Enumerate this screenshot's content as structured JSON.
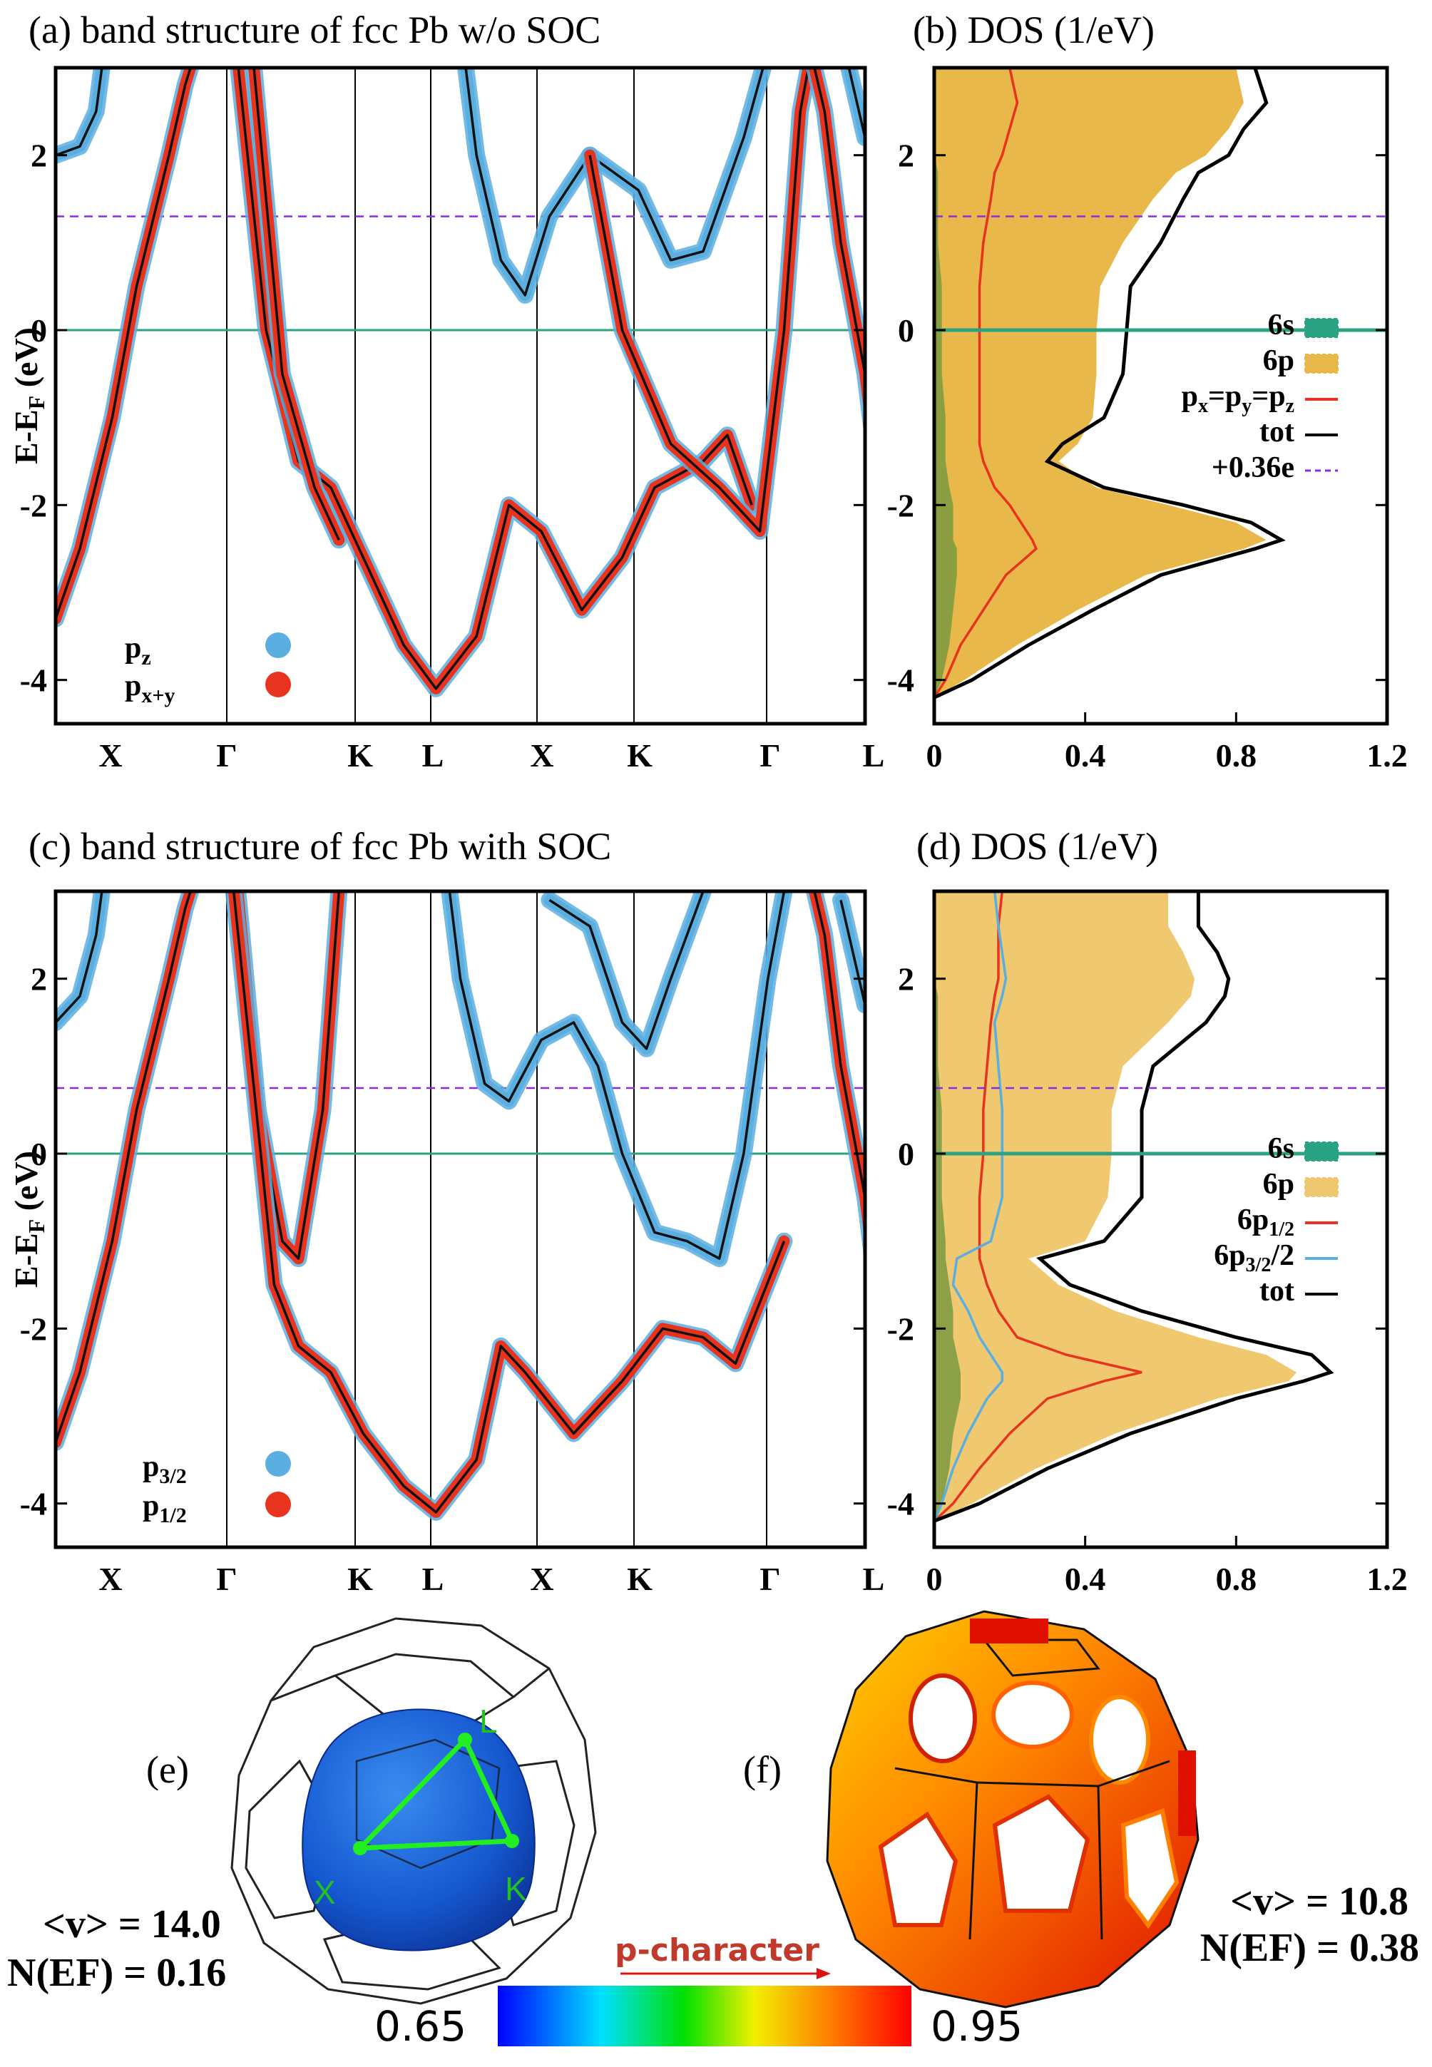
{
  "chart_data": [
    {
      "id": "a",
      "type": "line",
      "title": "(a) band structure of fcc Pb w/o SOC",
      "ylabel": "E-EF (eV)",
      "ylim": [
        -4.5,
        3.0
      ],
      "yticks": [
        "2",
        "0",
        "-2",
        "-4"
      ],
      "kpoints": [
        "X",
        "Γ",
        "K",
        "L",
        "X",
        "K",
        "Γ",
        "L"
      ],
      "hlines": {
        "fermi": 0.0,
        "shifted": 1.3
      },
      "legend": [
        {
          "label": "pz",
          "color": "#5aaee0"
        },
        {
          "label": "px+y",
          "color": "#e8331e"
        }
      ]
    },
    {
      "id": "b",
      "type": "area",
      "title": "(b) DOS (1/eV)",
      "xlim": [
        0,
        1.2
      ],
      "ylim": [
        -4.5,
        3.0
      ],
      "xticks": [
        "0",
        "0.4",
        "0.8",
        "1.2"
      ],
      "yticks": [
        "2",
        "0",
        "-2",
        "-4"
      ],
      "series": [
        {
          "name": "6s",
          "color": "#2aa383"
        },
        {
          "name": "6p",
          "color": "#e8b84a"
        },
        {
          "name": "px=py=pz",
          "color": "#e8331e"
        },
        {
          "name": "tot",
          "color": "#000000"
        },
        {
          "name": "+0.36e",
          "color": "#8a2be2"
        }
      ],
      "energies": [
        -4.2,
        -4.0,
        -3.6,
        -3.2,
        -2.8,
        -2.5,
        -2.4,
        -2.2,
        -2.0,
        -1.8,
        -1.5,
        -1.3,
        -1.0,
        -0.5,
        0.0,
        0.5,
        1.0,
        1.5,
        1.8,
        2.0,
        2.3,
        2.6,
        3.0
      ],
      "tot": [
        0.0,
        0.1,
        0.25,
        0.42,
        0.6,
        0.85,
        0.92,
        0.84,
        0.66,
        0.45,
        0.3,
        0.34,
        0.45,
        0.5,
        0.51,
        0.52,
        0.6,
        0.66,
        0.7,
        0.78,
        0.82,
        0.88,
        0.85
      ],
      "p6": [
        0.0,
        0.08,
        0.22,
        0.38,
        0.56,
        0.82,
        0.88,
        0.8,
        0.62,
        0.43,
        0.33,
        0.38,
        0.42,
        0.43,
        0.43,
        0.44,
        0.5,
        0.58,
        0.64,
        0.72,
        0.78,
        0.82,
        0.8
      ],
      "s6": [
        0.0,
        0.02,
        0.04,
        0.05,
        0.06,
        0.06,
        0.05,
        0.05,
        0.05,
        0.04,
        0.03,
        0.03,
        0.03,
        0.02,
        0.02,
        0.02,
        0.01,
        0.01,
        0.01,
        0.0,
        0.0,
        0.0,
        0.0
      ],
      "pxyz": [
        0.0,
        0.03,
        0.07,
        0.13,
        0.19,
        0.27,
        0.26,
        0.23,
        0.2,
        0.16,
        0.13,
        0.12,
        0.12,
        0.12,
        0.12,
        0.12,
        0.13,
        0.15,
        0.16,
        0.18,
        0.2,
        0.22,
        0.2
      ]
    },
    {
      "id": "c",
      "type": "line",
      "title": "(c) band structure of fcc Pb with SOC",
      "ylabel": "E-EF (eV)",
      "ylim": [
        -4.5,
        3.0
      ],
      "yticks": [
        "2",
        "0",
        "-2",
        "-4"
      ],
      "kpoints": [
        "X",
        "Γ",
        "K",
        "L",
        "X",
        "K",
        "Γ",
        "L"
      ],
      "hlines": {
        "fermi": 0.0,
        "shifted": 0.75
      },
      "legend": [
        {
          "label": "p3/2",
          "color": "#5aaee0"
        },
        {
          "label": "p1/2",
          "color": "#e8331e"
        }
      ]
    },
    {
      "id": "d",
      "type": "area",
      "title": "(d) DOS (1/eV)",
      "xlim": [
        0,
        1.2
      ],
      "ylim": [
        -4.5,
        3.0
      ],
      "xticks": [
        "0",
        "0.4",
        "0.8",
        "1.2"
      ],
      "yticks": [
        "2",
        "0",
        "-2",
        "-4"
      ],
      "series": [
        {
          "name": "6s",
          "color": "#2aa383"
        },
        {
          "name": "6p",
          "color": "#f0c870"
        },
        {
          "name": "6p1/2",
          "color": "#e8331e"
        },
        {
          "name": "6p3/2/2",
          "color": "#5aaee0"
        },
        {
          "name": "tot",
          "color": "#000000"
        }
      ],
      "energies": [
        -4.2,
        -4.0,
        -3.6,
        -3.2,
        -2.8,
        -2.6,
        -2.5,
        -2.3,
        -2.1,
        -1.8,
        -1.5,
        -1.2,
        -1.0,
        -0.5,
        0.0,
        0.5,
        1.0,
        1.5,
        1.8,
        2.0,
        2.3,
        2.6,
        3.0
      ],
      "tot": [
        0.0,
        0.12,
        0.3,
        0.52,
        0.8,
        0.98,
        1.05,
        1.0,
        0.8,
        0.55,
        0.36,
        0.28,
        0.45,
        0.55,
        0.55,
        0.55,
        0.58,
        0.72,
        0.77,
        0.78,
        0.75,
        0.7,
        0.7
      ],
      "p6": [
        0.0,
        0.1,
        0.27,
        0.48,
        0.75,
        0.94,
        0.96,
        0.88,
        0.7,
        0.48,
        0.33,
        0.25,
        0.4,
        0.46,
        0.47,
        0.47,
        0.5,
        0.62,
        0.68,
        0.69,
        0.66,
        0.62,
        0.62
      ],
      "s6": [
        0.0,
        0.02,
        0.04,
        0.05,
        0.07,
        0.07,
        0.07,
        0.06,
        0.05,
        0.05,
        0.04,
        0.03,
        0.03,
        0.02,
        0.02,
        0.02,
        0.01,
        0.01,
        0.01,
        0.0,
        0.0,
        0.0,
        0.0
      ],
      "p12": [
        0.0,
        0.05,
        0.12,
        0.2,
        0.3,
        0.45,
        0.55,
        0.35,
        0.22,
        0.17,
        0.14,
        0.12,
        0.12,
        0.12,
        0.13,
        0.13,
        0.14,
        0.15,
        0.16,
        0.17,
        0.17,
        0.17,
        0.18
      ],
      "p32": [
        0.0,
        0.02,
        0.05,
        0.09,
        0.14,
        0.18,
        0.18,
        0.15,
        0.12,
        0.09,
        0.05,
        0.06,
        0.15,
        0.18,
        0.18,
        0.18,
        0.17,
        0.16,
        0.18,
        0.19,
        0.18,
        0.17,
        0.16
      ]
    }
  ],
  "panel_e": {
    "label": "(e)",
    "points": [
      "L",
      "X",
      "K"
    ],
    "velocity": "<v> = 14.0",
    "dos": "N(EF) = 0.16"
  },
  "panel_f": {
    "label": "(f)",
    "velocity": "<v> = 10.8",
    "dos": "N(EF) = 0.38"
  },
  "colorbar": {
    "title": "p-character",
    "min": "0.65",
    "max": "0.95"
  }
}
